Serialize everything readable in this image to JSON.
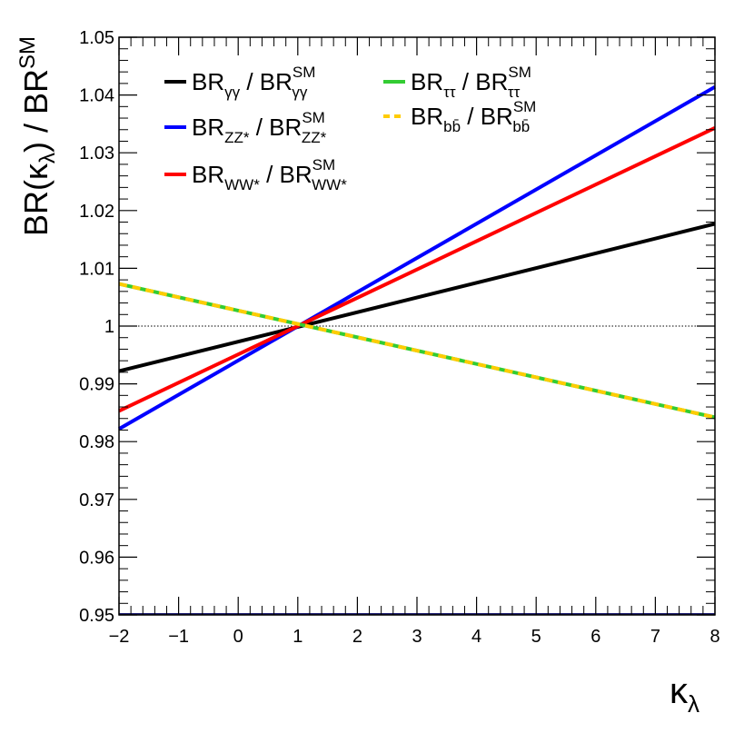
{
  "chart_data": {
    "type": "line",
    "title": "",
    "xlabel": {
      "main": "κ",
      "sub": "λ"
    },
    "ylabel": {
      "pre": "BR(κ",
      "sub": "λ",
      "mid": ") / BR",
      "sup": "SM"
    },
    "xlim": [
      -2,
      8
    ],
    "ylim": [
      0.95,
      1.05
    ],
    "x_ticks": [
      -2,
      -1,
      0,
      1,
      2,
      3,
      4,
      5,
      6,
      7,
      8
    ],
    "x_tick_labels": [
      "−2",
      "−1",
      "0",
      "1",
      "2",
      "3",
      "4",
      "5",
      "6",
      "7",
      "8"
    ],
    "y_ticks": [
      0.95,
      0.96,
      0.97,
      0.98,
      0.99,
      1.0,
      1.01,
      1.02,
      1.03,
      1.04,
      1.05
    ],
    "y_tick_labels": [
      "0.95",
      "0.96",
      "0.97",
      "0.98",
      "0.99",
      "1",
      "1.01",
      "1.02",
      "1.03",
      "1.04",
      "1.05"
    ],
    "reference_line": {
      "y": 1.0,
      "style": "dotted"
    },
    "grid": false,
    "legend_position": "top-left",
    "series": [
      {
        "name": "BR_γγ / BR_γγ^SM",
        "legend": {
          "base": "BR",
          "sub": "γγ",
          "sep": " / BR",
          "sup": "SM",
          "sub2": "γγ"
        },
        "color": "#000000",
        "dash": "solid",
        "x": [
          -2,
          8
        ],
        "y": [
          0.9922,
          1.0177
        ]
      },
      {
        "name": "BR_ZZ* / BR_ZZ*^SM",
        "legend": {
          "base": "BR",
          "sub": "ZZ*",
          "sep": " / BR",
          "sup": "SM",
          "sub2": "ZZ*"
        },
        "color": "#0000ff",
        "dash": "solid",
        "x": [
          -2,
          8
        ],
        "y": [
          0.9822,
          1.0414
        ]
      },
      {
        "name": "BR_WW* / BR_WW*^SM",
        "legend": {
          "base": "BR",
          "sub": "WW*",
          "sep": " / BR",
          "sup": "SM",
          "sub2": "WW*"
        },
        "color": "#ff0000",
        "dash": "solid",
        "x": [
          -2,
          8
        ],
        "y": [
          0.9853,
          1.0343
        ]
      },
      {
        "name": "BR_ττ / BR_ττ^SM",
        "legend": {
          "base": "BR",
          "sub": "ττ",
          "sep": " / BR",
          "sup": "SM",
          "sub2": "ττ"
        },
        "color": "#33cc33",
        "dash": "solid",
        "x": [
          -2,
          8
        ],
        "y": [
          1.0073,
          0.9842
        ]
      },
      {
        "name": "BR_bb̄ / BR_bb̄^SM",
        "legend": {
          "base": "BR",
          "sub": "bb̄",
          "sep": " / BR",
          "sup": "SM",
          "sub2": "bb̄"
        },
        "color": "#ffcc00",
        "dash": "dashed",
        "x": [
          -2,
          8
        ],
        "y": [
          1.0073,
          0.9842
        ]
      }
    ]
  }
}
